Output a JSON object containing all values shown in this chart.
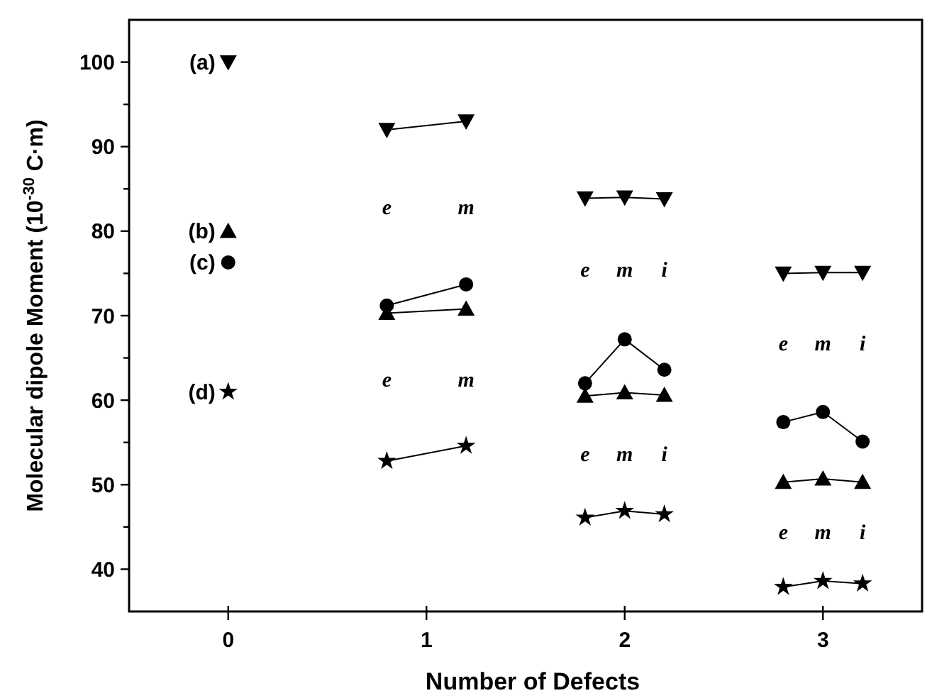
{
  "chart_data": {
    "type": "line",
    "xlabel": "Number of Defects",
    "ylabel": "Molecular dipole Moment (10$^{-30}$ C·m)",
    "xlim": [
      -0.5,
      3.5
    ],
    "xticks": [
      0,
      1,
      2,
      3
    ],
    "ylim": [
      35,
      105
    ],
    "yticks": [
      40,
      {
        "value": 45,
        "label": null
      },
      50,
      {
        "value": 55,
        "label": null
      },
      60,
      {
        "value": 65,
        "label": null
      },
      70,
      {
        "value": 75,
        "label": null
      },
      80,
      {
        "value": 85,
        "label": null
      },
      90,
      {
        "value": 95,
        "label": null
      },
      100
    ],
    "grid": false,
    "line_style": "solid",
    "x": [
      0,
      0.5,
      0.8,
      1.2,
      1.5,
      1.8,
      2,
      2.2,
      2.5,
      2.8,
      3,
      3.2
    ],
    "series": [
      {
        "name": "(a)",
        "color": "#000000",
        "marker": "triangle-down",
        "values": [
          100,
          null,
          92,
          93,
          null,
          83.9,
          84,
          83.8,
          null,
          75,
          75.1,
          75.1
        ]
      },
      {
        "name": "(b)",
        "color": "#000000",
        "marker": "triangle",
        "values": [
          80,
          null,
          70.3,
          70.8,
          null,
          60.5,
          60.9,
          60.6,
          null,
          50.3,
          50.7,
          50.3
        ]
      },
      {
        "name": "(c)",
        "color": "#000000",
        "marker": "circle",
        "values": [
          76.3,
          null,
          71.2,
          73.7,
          null,
          62,
          67.2,
          63.6,
          null,
          57.4,
          58.6,
          55.1
        ]
      },
      {
        "name": "(d)",
        "color": "#000000",
        "marker": "star",
        "values": [
          61,
          null,
          52.8,
          54.6,
          null,
          46.1,
          46.9,
          46.5,
          null,
          37.9,
          38.6,
          38.3
        ]
      }
    ],
    "annotations": [
      "e",
      "m",
      "e",
      "m",
      "e",
      "m",
      "i",
      "e",
      "m",
      "i",
      "e",
      "m",
      "i",
      "e",
      "m",
      "i"
    ]
  }
}
